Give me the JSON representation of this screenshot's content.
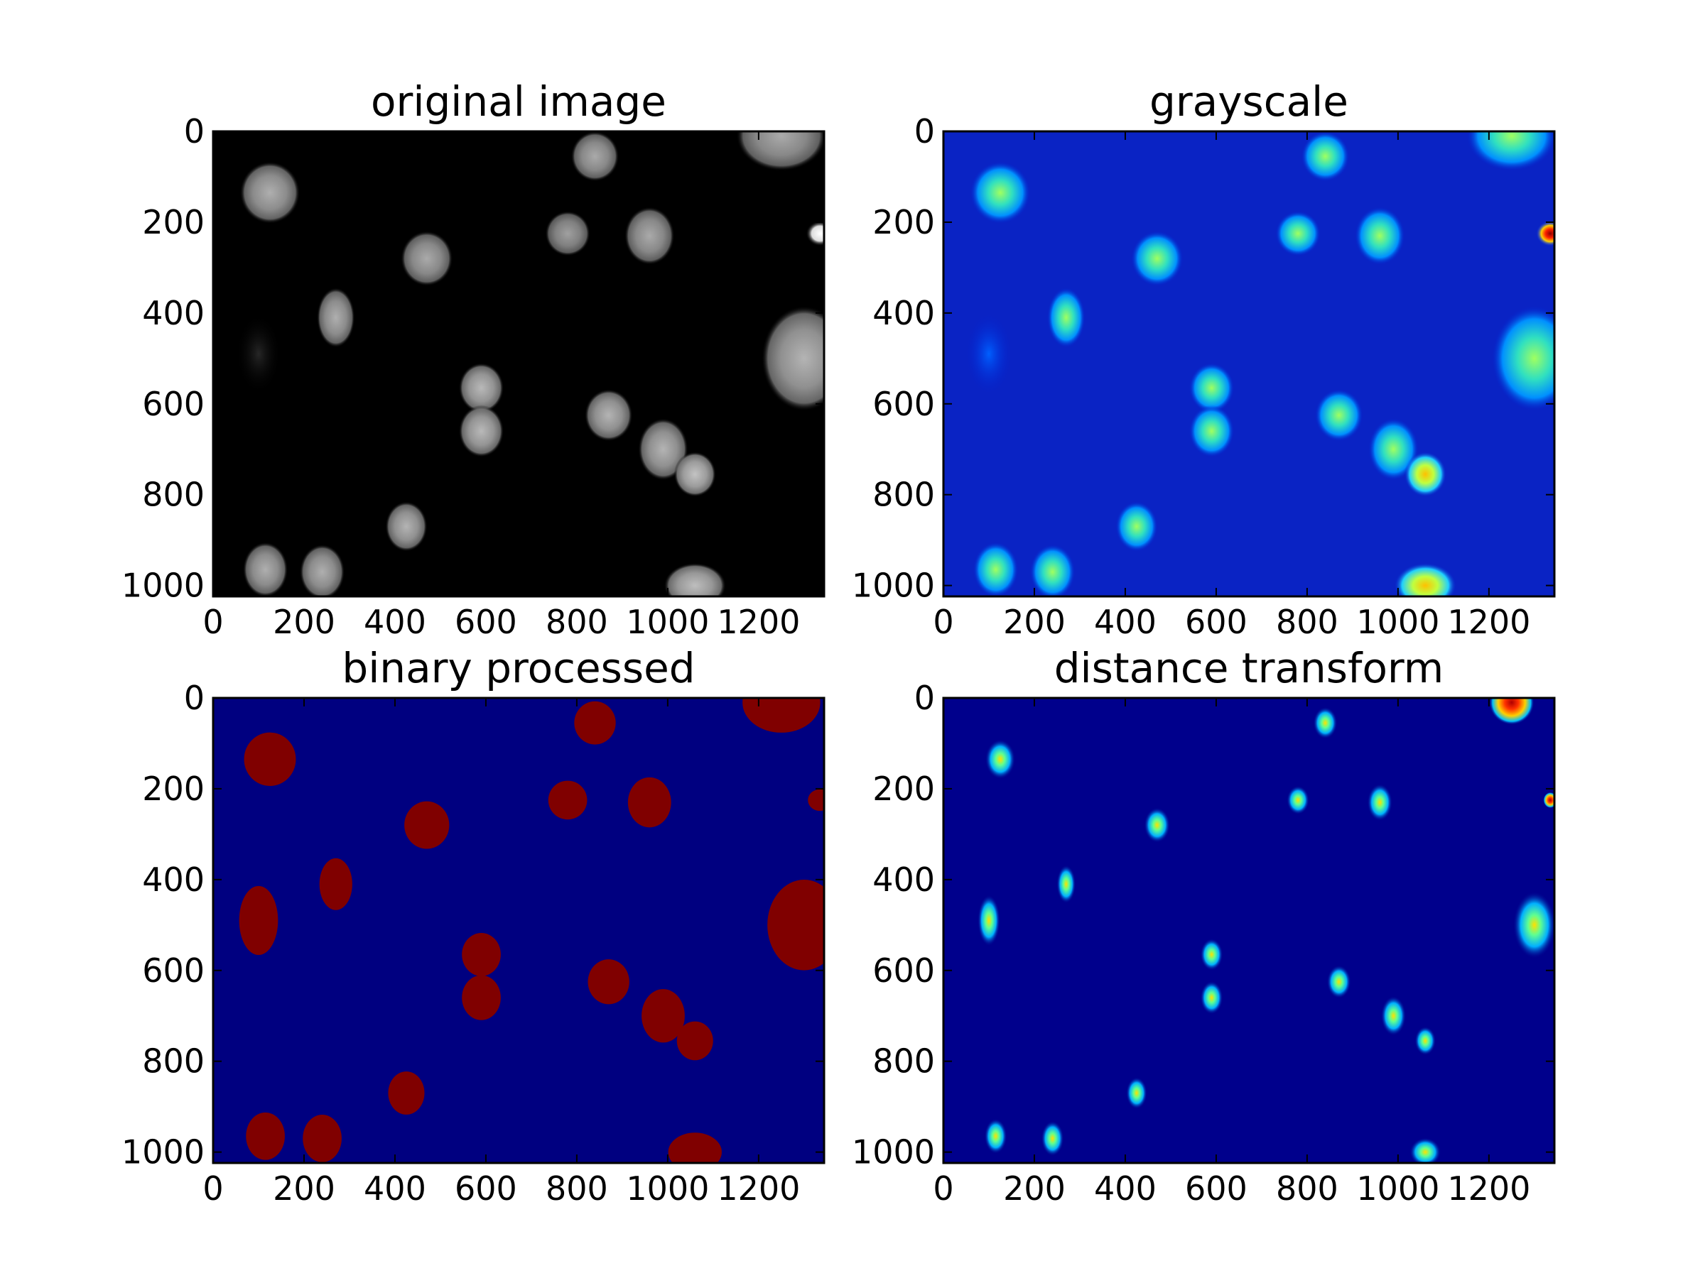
{
  "figure": {
    "panels": [
      {
        "title": "original image",
        "colormap": "gray",
        "xticks": [
          "0",
          "200",
          "400",
          "600",
          "800",
          "1000",
          "1200"
        ],
        "yticks": [
          "0",
          "200",
          "400",
          "600",
          "800",
          "1000"
        ]
      },
      {
        "title": "grayscale",
        "colormap": "jet",
        "xticks": [
          "0",
          "200",
          "400",
          "600",
          "800",
          "1000",
          "1200"
        ],
        "yticks": [
          "0",
          "200",
          "400",
          "600",
          "800",
          "1000"
        ]
      },
      {
        "title": "binary processed",
        "colormap": "jet",
        "xticks": [
          "0",
          "200",
          "400",
          "600",
          "800",
          "1000",
          "1200"
        ],
        "yticks": [
          "0",
          "200",
          "400",
          "600",
          "800",
          "1000"
        ]
      },
      {
        "title": "distance transform",
        "colormap": "jet",
        "xticks": [
          "0",
          "200",
          "400",
          "600",
          "800",
          "1000",
          "1200"
        ],
        "yticks": [
          "0",
          "200",
          "400",
          "600",
          "800",
          "1000"
        ]
      }
    ]
  },
  "chart_data": [
    {
      "type": "heatmap",
      "title": "original image",
      "xlim": [
        0,
        1344
      ],
      "ylim": [
        1024,
        0
      ],
      "x_ticks": [
        0,
        200,
        400,
        600,
        800,
        1000,
        1200
      ],
      "y_ticks": [
        0,
        200,
        400,
        600,
        800,
        1000
      ],
      "colormap": "gray",
      "nuclei": [
        {
          "x": 125,
          "y": 135,
          "rx": 60,
          "ry": 62,
          "intensity": 0.55
        },
        {
          "x": 840,
          "y": 55,
          "rx": 48,
          "ry": 50,
          "intensity": 0.5
        },
        {
          "x": 1250,
          "y": 10,
          "rx": 90,
          "ry": 70,
          "intensity": 0.5
        },
        {
          "x": 780,
          "y": 225,
          "rx": 45,
          "ry": 45,
          "intensity": 0.4
        },
        {
          "x": 960,
          "y": 230,
          "rx": 50,
          "ry": 58,
          "intensity": 0.5
        },
        {
          "x": 470,
          "y": 280,
          "rx": 52,
          "ry": 55,
          "intensity": 0.5
        },
        {
          "x": 1335,
          "y": 225,
          "rx": 28,
          "ry": 25,
          "intensity": 0.95
        },
        {
          "x": 270,
          "y": 410,
          "rx": 38,
          "ry": 60,
          "intensity": 0.55
        },
        {
          "x": 100,
          "y": 490,
          "rx": 45,
          "ry": 80,
          "intensity": 0.15
        },
        {
          "x": 1300,
          "y": 500,
          "rx": 85,
          "ry": 105,
          "intensity": 0.6
        },
        {
          "x": 590,
          "y": 565,
          "rx": 45,
          "ry": 50,
          "intensity": 0.65
        },
        {
          "x": 590,
          "y": 660,
          "rx": 45,
          "ry": 52,
          "intensity": 0.65
        },
        {
          "x": 870,
          "y": 625,
          "rx": 48,
          "ry": 52,
          "intensity": 0.6
        },
        {
          "x": 990,
          "y": 700,
          "rx": 50,
          "ry": 62,
          "intensity": 0.6
        },
        {
          "x": 1060,
          "y": 755,
          "rx": 42,
          "ry": 45,
          "intensity": 0.75
        },
        {
          "x": 425,
          "y": 870,
          "rx": 42,
          "ry": 50,
          "intensity": 0.6
        },
        {
          "x": 115,
          "y": 965,
          "rx": 45,
          "ry": 55,
          "intensity": 0.55
        },
        {
          "x": 240,
          "y": 970,
          "rx": 45,
          "ry": 55,
          "intensity": 0.55
        },
        {
          "x": 1060,
          "y": 1000,
          "rx": 62,
          "ry": 45,
          "intensity": 0.7
        }
      ]
    },
    {
      "type": "heatmap",
      "title": "grayscale",
      "xlim": [
        0,
        1344
      ],
      "ylim": [
        1024,
        0
      ],
      "x_ticks": [
        0,
        200,
        400,
        600,
        800,
        1000,
        1200
      ],
      "y_ticks": [
        0,
        200,
        400,
        600,
        800,
        1000
      ],
      "colormap": "jet",
      "nuclei_ref": "same as original image"
    },
    {
      "type": "heatmap",
      "title": "binary processed",
      "xlim": [
        0,
        1344
      ],
      "ylim": [
        1024,
        0
      ],
      "x_ticks": [
        0,
        200,
        400,
        600,
        800,
        1000,
        1200
      ],
      "y_ticks": [
        0,
        200,
        400,
        600,
        800,
        1000
      ],
      "colormap": "jet",
      "values": [
        0,
        1
      ],
      "foreground_color": "#800000",
      "background_color": "#000080"
    },
    {
      "type": "heatmap",
      "title": "distance transform",
      "xlim": [
        0,
        1344
      ],
      "ylim": [
        1024,
        0
      ],
      "x_ticks": [
        0,
        200,
        400,
        600,
        800,
        1000,
        1200
      ],
      "y_ticks": [
        0,
        200,
        400,
        600,
        800,
        1000
      ],
      "colormap": "jet"
    }
  ]
}
